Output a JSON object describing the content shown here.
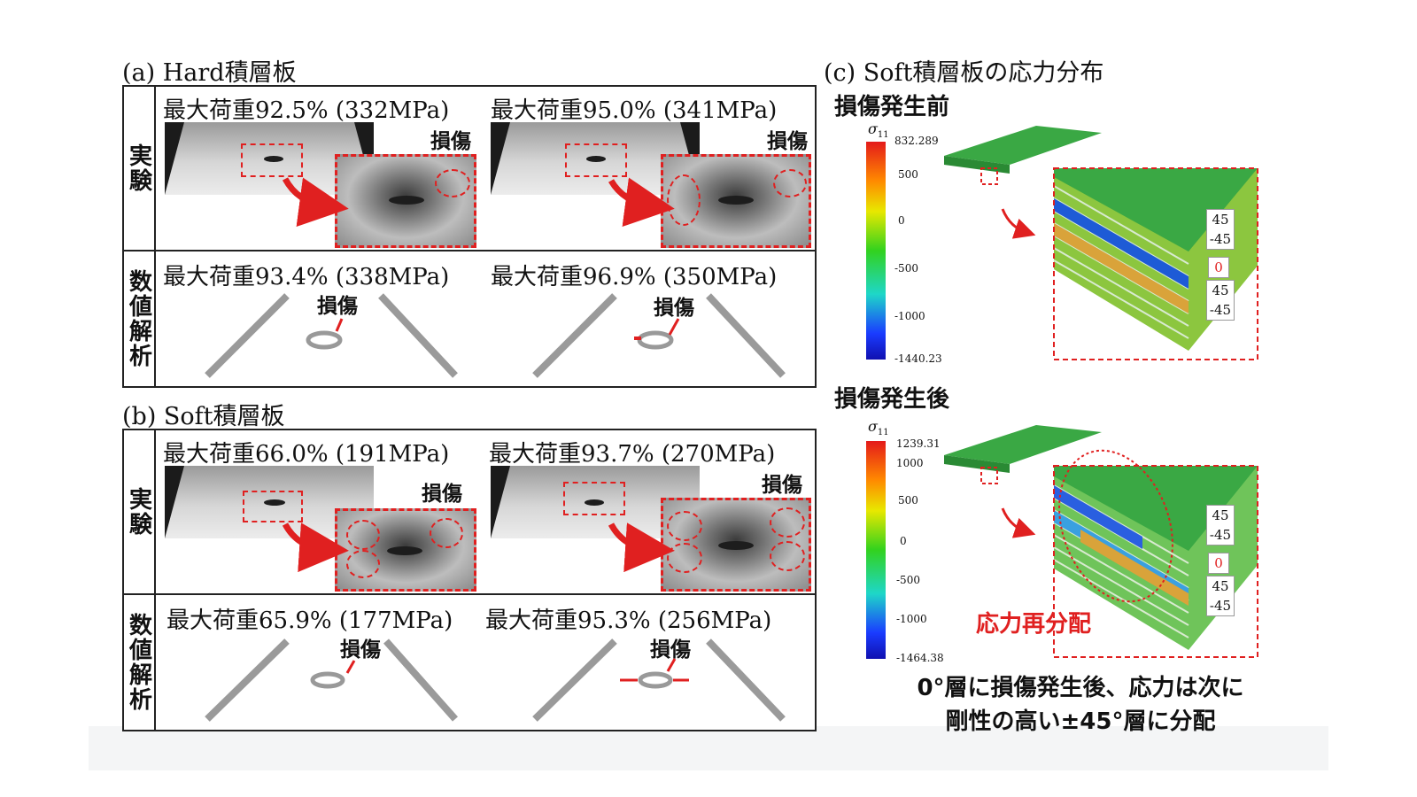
{
  "panel_a": {
    "title": "(a) Hard積層板",
    "row_experiment": "実験",
    "row_analysis": "数値解析",
    "exp_left_caption": "最大荷重92.5% (332MPa)",
    "exp_right_caption": "最大荷重95.0% (341MPa)",
    "ana_left_caption": "最大荷重93.4% (338MPa)",
    "ana_right_caption": "最大荷重96.9% (350MPa)",
    "damage_label": "損傷"
  },
  "panel_b": {
    "title": "(b) Soft積層板",
    "row_experiment": "実験",
    "row_analysis": "数値解析",
    "exp_left_caption": "最大荷重66.0% (191MPa)",
    "exp_right_caption": "最大荷重93.7% (270MPa)",
    "ana_left_caption": "最大荷重65.9% (177MPa)",
    "ana_right_caption": "最大荷重95.3% (256MPa)",
    "damage_label": "損傷"
  },
  "panel_c": {
    "title": "(c) Soft積層板の応力分布",
    "before_heading": "損傷発生前",
    "after_heading": "損傷発生後",
    "sigma_symbol": "σ",
    "sigma_sub": "11",
    "before_colorbar": {
      "max": "832.289",
      "ticks": [
        "500",
        "0",
        "-500",
        "-1000"
      ],
      "min": "-1440.23"
    },
    "after_colorbar": {
      "max": "1239.31",
      "ticks": [
        "1000",
        "500",
        "0",
        "-500",
        "-1000"
      ],
      "min": "-1464.38"
    },
    "layers_top": [
      "45",
      "-45"
    ],
    "layer_zero": "0",
    "layers_bottom": [
      "45",
      "-45"
    ],
    "redistribution_label": "応力再分配",
    "conclusion_line1": "0°層に損傷発生後、応力は次に",
    "conclusion_line2": "剛性の高い±45°層に分配"
  },
  "colors": {
    "accent_red": "#e02020",
    "plate_green": "#2fa83a"
  }
}
